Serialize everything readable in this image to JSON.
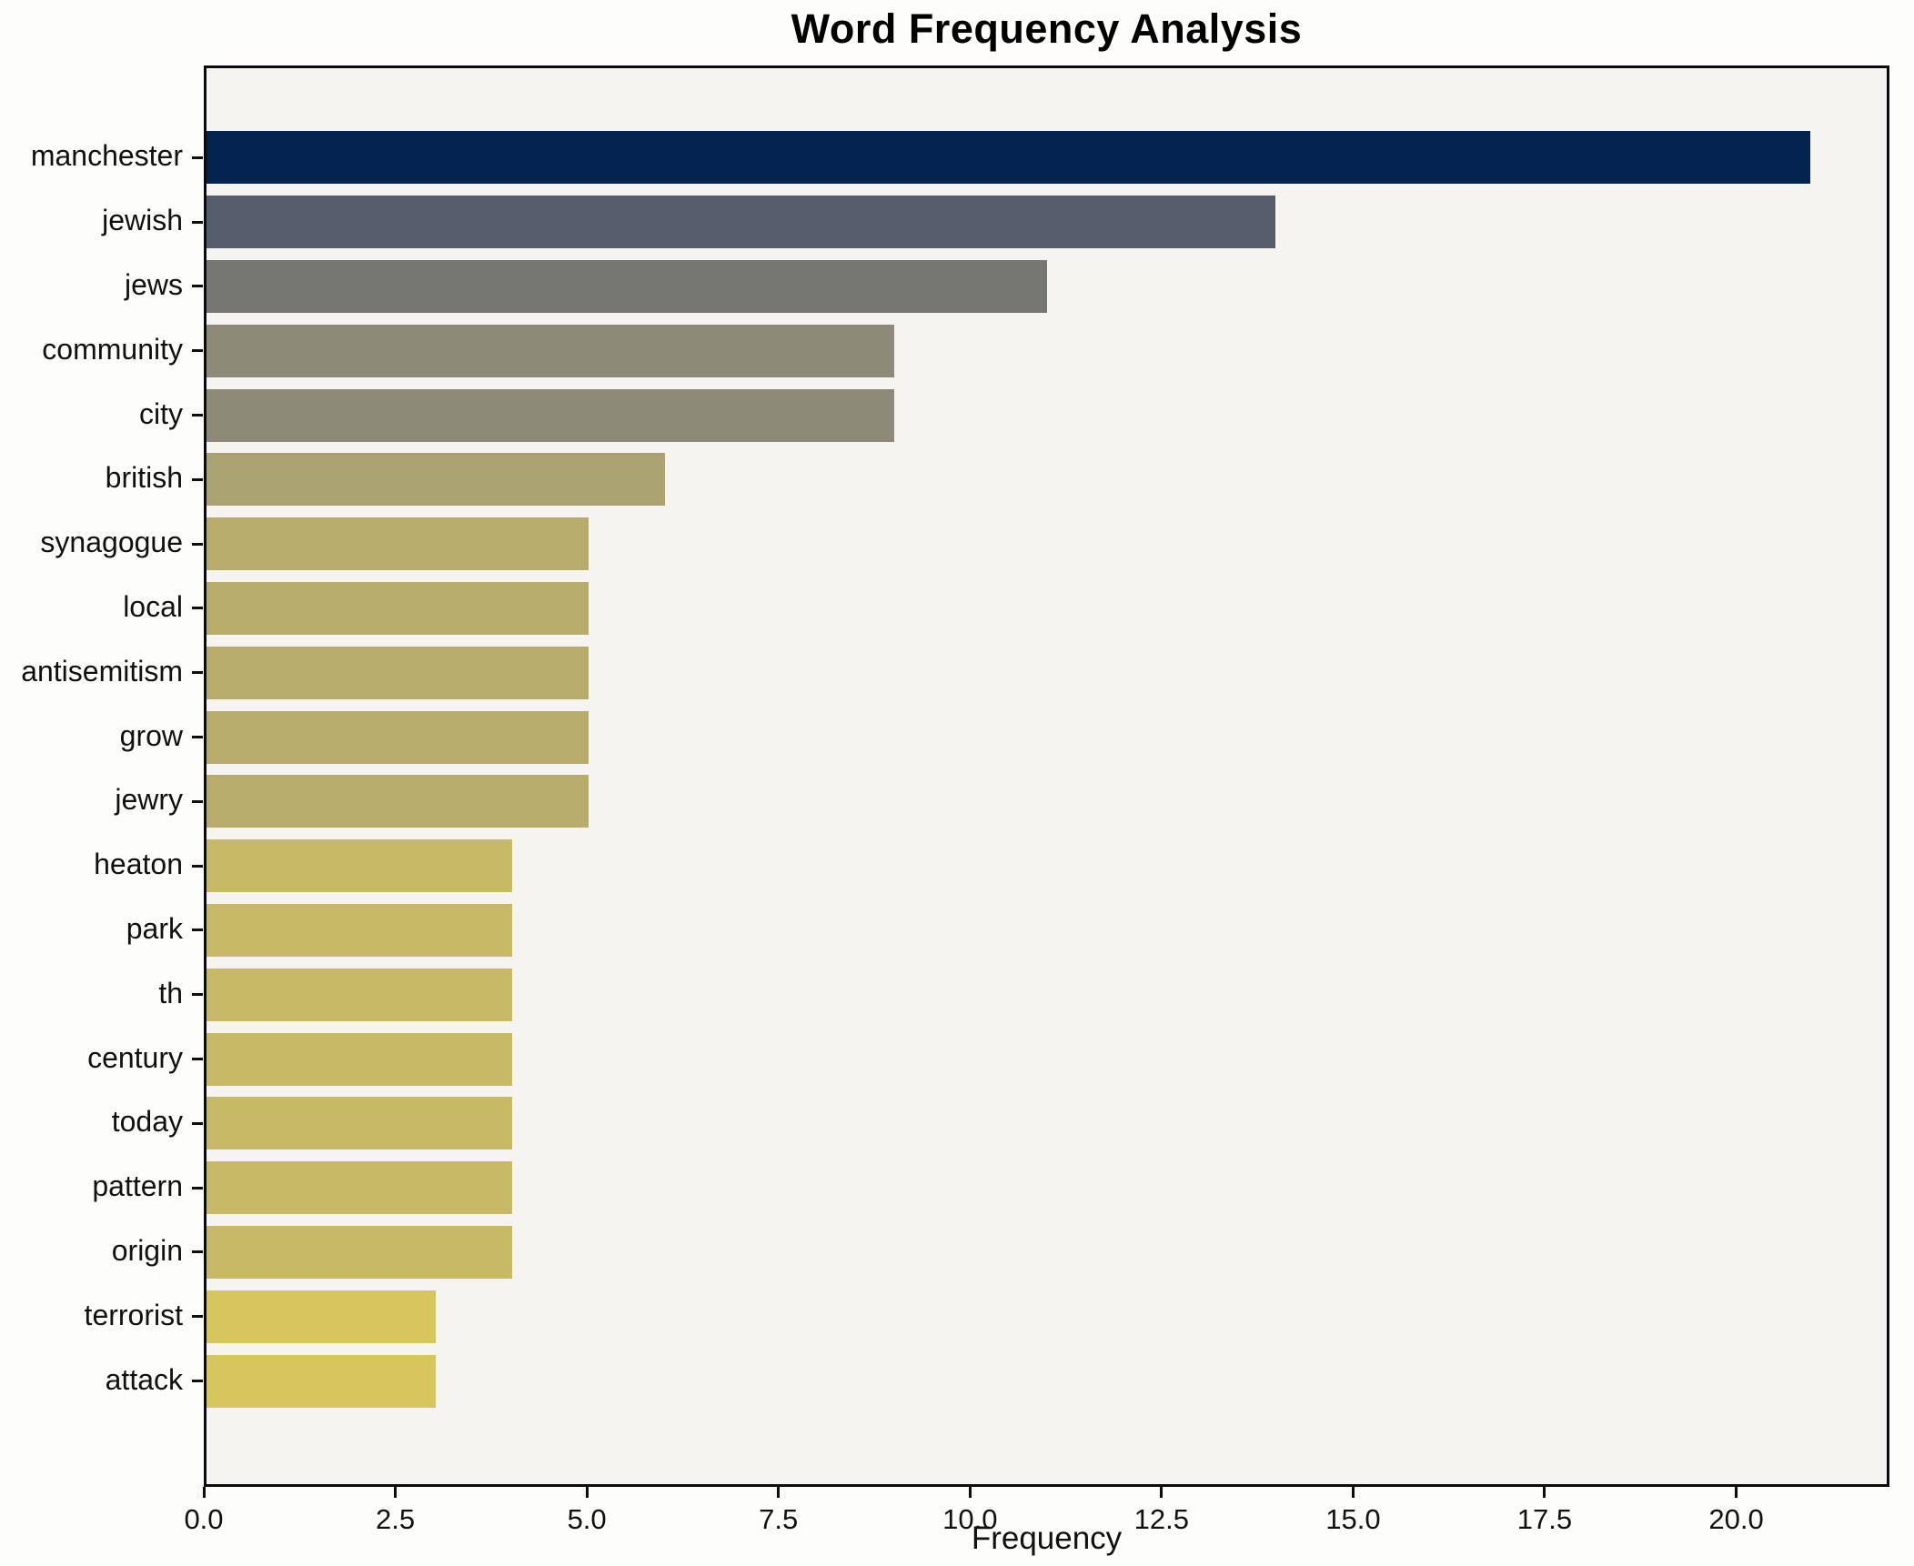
{
  "title": "Word Frequency Analysis",
  "chart_data": {
    "type": "bar",
    "orientation": "horizontal",
    "title": "Word Frequency Analysis",
    "xlabel": "Frequency",
    "ylabel": "",
    "categories": [
      "manchester",
      "jewish",
      "jews",
      "community",
      "city",
      "british",
      "synagogue",
      "local",
      "antisemitism",
      "grow",
      "jewry",
      "heaton",
      "park",
      "th",
      "century",
      "today",
      "pattern",
      "origin",
      "terrorist",
      "attack"
    ],
    "values": [
      21,
      14,
      11,
      9,
      9,
      6,
      5,
      5,
      5,
      5,
      5,
      4,
      4,
      4,
      4,
      4,
      4,
      4,
      3,
      3
    ],
    "bar_colors": [
      "#04234e",
      "#575d6d",
      "#767672",
      "#8e8a78",
      "#8e8a78",
      "#aba271",
      "#b7ac6b",
      "#b7ac6b",
      "#b7ac6b",
      "#b7ac6b",
      "#b7ac6b",
      "#c8b966",
      "#c8b966",
      "#c8b966",
      "#c8b966",
      "#c8b966",
      "#c8b966",
      "#c8b966",
      "#d7c55e",
      "#d7c55e"
    ],
    "colormap": "cividis",
    "xlim": [
      0,
      22
    ],
    "x_ticks": [
      0.0,
      2.5,
      5.0,
      7.5,
      10.0,
      12.5,
      15.0,
      17.5,
      20.0
    ],
    "x_tick_labels": [
      "0.0",
      "2.5",
      "5.0",
      "7.5",
      "10.0",
      "12.5",
      "15.0",
      "17.5",
      "20.0"
    ],
    "grid": false,
    "legend_position": "none"
  },
  "colors": {
    "figure_bg": "#fdfdfc",
    "plot_bg": "#f5f4f1",
    "spine": "#0c0c0c",
    "text": "#111111"
  }
}
